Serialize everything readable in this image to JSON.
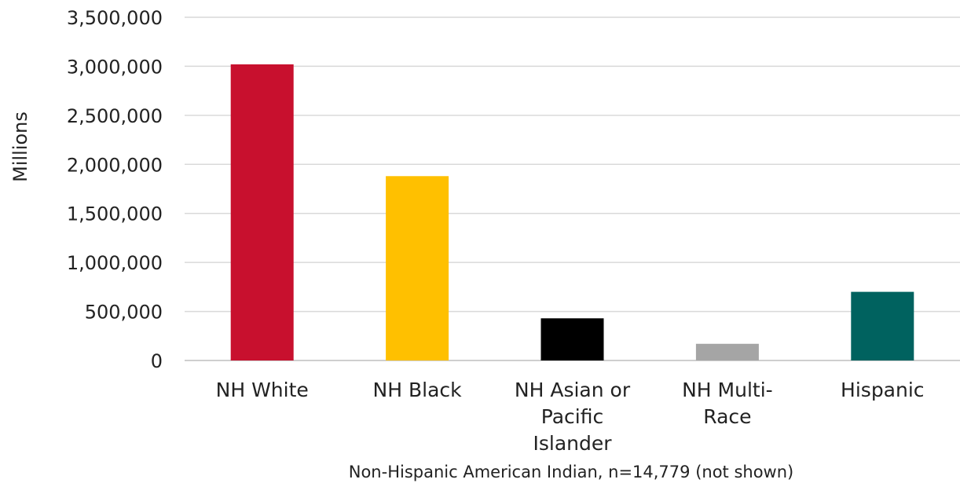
{
  "chart_data": {
    "type": "bar",
    "title": "",
    "xlabel": "",
    "ylabel": "Millions",
    "ylim": [
      0,
      3500000
    ],
    "yticks": [
      0,
      500000,
      1000000,
      1500000,
      2000000,
      2500000,
      3000000,
      3500000
    ],
    "ytick_labels": [
      "0",
      "500,000",
      "1,000,000",
      "1,500,000",
      "2,000,000",
      "2,500,000",
      "3,000,000",
      "3,500,000"
    ],
    "grid": true,
    "legend": "none",
    "categories": [
      [
        "NH White"
      ],
      [
        "NH Black"
      ],
      [
        "NH Asian or",
        "Pacific",
        "Islander"
      ],
      [
        "NH Multi-",
        "Race"
      ],
      [
        "Hispanic"
      ]
    ],
    "values": [
      3020000,
      1880000,
      430000,
      170000,
      700000
    ],
    "colors": [
      "#C8102E",
      "#FFC000",
      "#000000",
      "#A5A5A5",
      "#00625F"
    ],
    "note": "Non-Hispanic American Indian, n=14,779 (not shown)"
  }
}
